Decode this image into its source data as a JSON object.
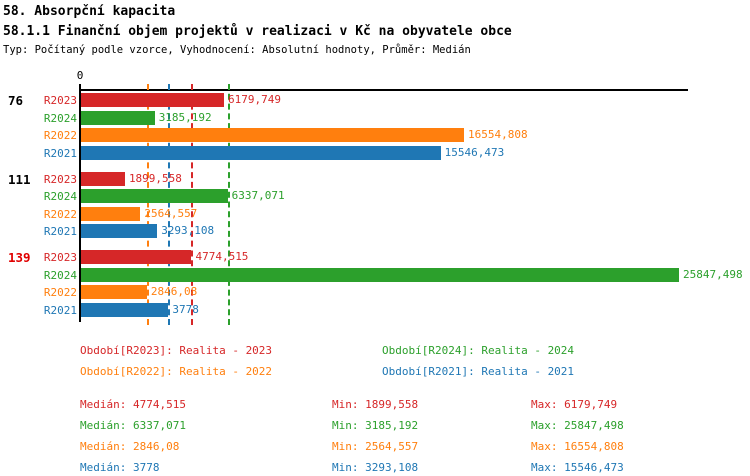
{
  "header": {
    "title1": "58. Absorpční kapacita",
    "title2": "58.1.1 Finanční objem projektů v realizaci v Kč na obyvatele obce",
    "subtitle": "Typ: Počítaný podle vzorce, Vyhodnocení: Absolutní hodnoty, Průměr: Medián"
  },
  "chart_data": {
    "type": "bar",
    "orientation": "horizontal",
    "unit": "Kč na obyvatele obce",
    "x_axis": {
      "zero_label": "0",
      "x_min": 0,
      "x_max": 25847.498
    },
    "series": [
      {
        "key": "R2023",
        "color": "#d62728",
        "legend": "Období[R2023]: Realita - 2023"
      },
      {
        "key": "R2024",
        "color": "#2ca02c",
        "legend": "Období[R2024]: Realita - 2024"
      },
      {
        "key": "R2022",
        "color": "#ff7f0e",
        "legend": "Období[R2022]: Realita - 2022"
      },
      {
        "key": "R2021",
        "color": "#1f77b4",
        "legend": "Období[R2021]: Realita - 2021"
      }
    ],
    "groups": [
      {
        "label": "76",
        "label_color": "#000000",
        "bars": [
          {
            "series": "R2023",
            "value": 6179.749,
            "label": "6179,749"
          },
          {
            "series": "R2024",
            "value": 3185.192,
            "label": "3185,192"
          },
          {
            "series": "R2022",
            "value": 16554.808,
            "label": "16554,808"
          },
          {
            "series": "R2021",
            "value": 15546.473,
            "label": "15546,473"
          }
        ]
      },
      {
        "label": "111",
        "label_color": "#000000",
        "bars": [
          {
            "series": "R2023",
            "value": 1899.558,
            "label": "1899,558"
          },
          {
            "series": "R2024",
            "value": 6337.071,
            "label": "6337,071"
          },
          {
            "series": "R2022",
            "value": 2564.557,
            "label": "2564,557"
          },
          {
            "series": "R2021",
            "value": 3293.108,
            "label": "3293,108"
          }
        ]
      },
      {
        "label": "139",
        "label_color": "#e00000",
        "bars": [
          {
            "series": "R2023",
            "value": 4774.515,
            "label": "4774,515"
          },
          {
            "series": "R2024",
            "value": 25847.498,
            "label": "25847,498"
          },
          {
            "series": "R2022",
            "value": 2846.08,
            "label": "2846,08"
          },
          {
            "series": "R2021",
            "value": 3778,
            "label": "3778"
          }
        ]
      }
    ],
    "median_lines": [
      {
        "series": "R2022",
        "value": 2846.08
      },
      {
        "series": "R2021",
        "value": 3778
      },
      {
        "series": "R2023",
        "value": 4774.515
      },
      {
        "series": "R2024",
        "value": 6337.071
      }
    ]
  },
  "stats": [
    {
      "series": "R2023",
      "median": "Medián: 4774,515",
      "min": "Min: 1899,558",
      "max": "Max: 6179,749"
    },
    {
      "series": "R2024",
      "median": "Medián: 6337,071",
      "min": "Min: 3185,192",
      "max": "Max: 25847,498"
    },
    {
      "series": "R2022",
      "median": "Medián: 2846,08",
      "min": "Min: 2564,557",
      "max": "Max: 16554,808"
    },
    {
      "series": "R2021",
      "median": "Medián: 3778",
      "min": "Min: 3293,108",
      "max": "Max: 15546,473"
    }
  ]
}
